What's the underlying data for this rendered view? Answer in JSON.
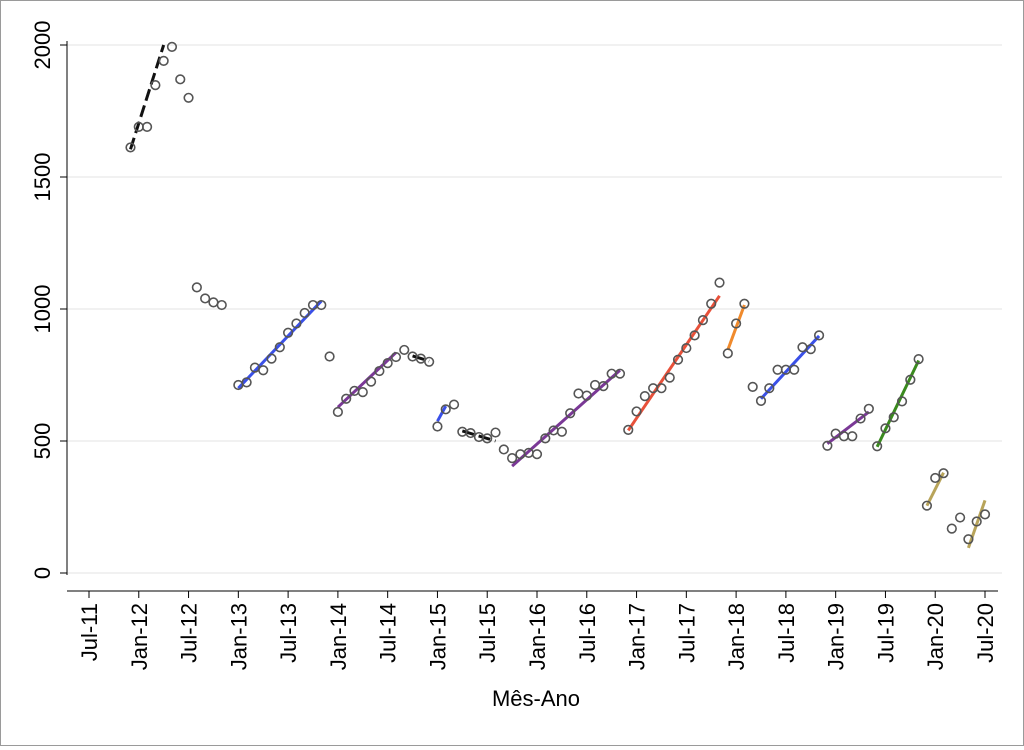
{
  "chart_data": {
    "type": "scatter",
    "title": "",
    "xlabel": "Mês-Ano",
    "ylabel": "",
    "ylim": [
      0,
      2000
    ],
    "yticks": [
      0,
      500,
      1000,
      1500,
      2000
    ],
    "xlim": [
      "2011-07",
      "2020-07"
    ],
    "xticks": [
      {
        "value": "2011-07",
        "label": "Jul-11"
      },
      {
        "value": "2012-01",
        "label": "Jan-12"
      },
      {
        "value": "2012-07",
        "label": "Jul-12"
      },
      {
        "value": "2013-01",
        "label": "Jan-13"
      },
      {
        "value": "2013-07",
        "label": "Jul-13"
      },
      {
        "value": "2014-01",
        "label": "Jan-14"
      },
      {
        "value": "2014-07",
        "label": "Jul-14"
      },
      {
        "value": "2015-01",
        "label": "Jan-15"
      },
      {
        "value": "2015-07",
        "label": "Jul-15"
      },
      {
        "value": "2016-01",
        "label": "Jan-16"
      },
      {
        "value": "2016-07",
        "label": "Jul-16"
      },
      {
        "value": "2017-01",
        "label": "Jan-17"
      },
      {
        "value": "2017-07",
        "label": "Jul-17"
      },
      {
        "value": "2018-01",
        "label": "Jan-18"
      },
      {
        "value": "2018-07",
        "label": "Jul-18"
      },
      {
        "value": "2019-01",
        "label": "Jan-19"
      },
      {
        "value": "2019-07",
        "label": "Jul-19"
      },
      {
        "value": "2020-01",
        "label": "Jan-20"
      },
      {
        "value": "2020-07",
        "label": "Jul-20"
      }
    ],
    "grid": true,
    "points": [
      {
        "x": "2011-12",
        "y": 1612
      },
      {
        "x": "2012-01",
        "y": 1690
      },
      {
        "x": "2012-02",
        "y": 1690
      },
      {
        "x": "2012-03",
        "y": 1848
      },
      {
        "x": "2012-04",
        "y": 1940
      },
      {
        "x": "2012-05",
        "y": 1993
      },
      {
        "x": "2012-06",
        "y": 1870
      },
      {
        "x": "2012-07",
        "y": 1800
      },
      {
        "x": "2012-08",
        "y": 1082
      },
      {
        "x": "2012-09",
        "y": 1040
      },
      {
        "x": "2012-10",
        "y": 1025
      },
      {
        "x": "2012-11",
        "y": 1015
      },
      {
        "x": "2013-01",
        "y": 712
      },
      {
        "x": "2013-02",
        "y": 722
      },
      {
        "x": "2013-03",
        "y": 778
      },
      {
        "x": "2013-04",
        "y": 768
      },
      {
        "x": "2013-05",
        "y": 812
      },
      {
        "x": "2013-06",
        "y": 855
      },
      {
        "x": "2013-07",
        "y": 910
      },
      {
        "x": "2013-08",
        "y": 945
      },
      {
        "x": "2013-09",
        "y": 985
      },
      {
        "x": "2013-10",
        "y": 1015
      },
      {
        "x": "2013-11",
        "y": 1015
      },
      {
        "x": "2013-12",
        "y": 820
      },
      {
        "x": "2014-01",
        "y": 610
      },
      {
        "x": "2014-02",
        "y": 660
      },
      {
        "x": "2014-03",
        "y": 690
      },
      {
        "x": "2014-04",
        "y": 685
      },
      {
        "x": "2014-05",
        "y": 725
      },
      {
        "x": "2014-06",
        "y": 765
      },
      {
        "x": "2014-07",
        "y": 795
      },
      {
        "x": "2014-08",
        "y": 818
      },
      {
        "x": "2014-09",
        "y": 845
      },
      {
        "x": "2014-10",
        "y": 820
      },
      {
        "x": "2014-11",
        "y": 812
      },
      {
        "x": "2014-12",
        "y": 800
      },
      {
        "x": "2015-01",
        "y": 555
      },
      {
        "x": "2015-02",
        "y": 620
      },
      {
        "x": "2015-03",
        "y": 638
      },
      {
        "x": "2015-04",
        "y": 535
      },
      {
        "x": "2015-05",
        "y": 530
      },
      {
        "x": "2015-06",
        "y": 515
      },
      {
        "x": "2015-07",
        "y": 510
      },
      {
        "x": "2015-08",
        "y": 532
      },
      {
        "x": "2015-09",
        "y": 468
      },
      {
        "x": "2015-10",
        "y": 435
      },
      {
        "x": "2015-11",
        "y": 450
      },
      {
        "x": "2015-12",
        "y": 455
      },
      {
        "x": "2016-01",
        "y": 450
      },
      {
        "x": "2016-02",
        "y": 510
      },
      {
        "x": "2016-03",
        "y": 540
      },
      {
        "x": "2016-04",
        "y": 535
      },
      {
        "x": "2016-05",
        "y": 605
      },
      {
        "x": "2016-06",
        "y": 680
      },
      {
        "x": "2016-07",
        "y": 672
      },
      {
        "x": "2016-08",
        "y": 712
      },
      {
        "x": "2016-09",
        "y": 708
      },
      {
        "x": "2016-10",
        "y": 755
      },
      {
        "x": "2016-11",
        "y": 755
      },
      {
        "x": "2016-12",
        "y": 542
      },
      {
        "x": "2017-01",
        "y": 612
      },
      {
        "x": "2017-02",
        "y": 670
      },
      {
        "x": "2017-03",
        "y": 700
      },
      {
        "x": "2017-04",
        "y": 700
      },
      {
        "x": "2017-05",
        "y": 740
      },
      {
        "x": "2017-06",
        "y": 808
      },
      {
        "x": "2017-07",
        "y": 852
      },
      {
        "x": "2017-08",
        "y": 900
      },
      {
        "x": "2017-09",
        "y": 958
      },
      {
        "x": "2017-10",
        "y": 1020
      },
      {
        "x": "2017-11",
        "y": 1100
      },
      {
        "x": "2017-12",
        "y": 832
      },
      {
        "x": "2018-01",
        "y": 945
      },
      {
        "x": "2018-02",
        "y": 1020
      },
      {
        "x": "2018-03",
        "y": 705
      },
      {
        "x": "2018-04",
        "y": 652
      },
      {
        "x": "2018-05",
        "y": 700
      },
      {
        "x": "2018-06",
        "y": 770
      },
      {
        "x": "2018-07",
        "y": 770
      },
      {
        "x": "2018-08",
        "y": 770
      },
      {
        "x": "2018-09",
        "y": 855
      },
      {
        "x": "2018-10",
        "y": 848
      },
      {
        "x": "2018-11",
        "y": 900
      },
      {
        "x": "2018-12",
        "y": 482
      },
      {
        "x": "2019-01",
        "y": 528
      },
      {
        "x": "2019-02",
        "y": 518
      },
      {
        "x": "2019-03",
        "y": 518
      },
      {
        "x": "2019-04",
        "y": 585
      },
      {
        "x": "2019-05",
        "y": 622
      },
      {
        "x": "2019-06",
        "y": 480
      },
      {
        "x": "2019-07",
        "y": 548
      },
      {
        "x": "2019-08",
        "y": 590
      },
      {
        "x": "2019-09",
        "y": 650
      },
      {
        "x": "2019-10",
        "y": 732
      },
      {
        "x": "2019-11",
        "y": 810
      },
      {
        "x": "2019-12",
        "y": 255
      },
      {
        "x": "2020-01",
        "y": 360
      },
      {
        "x": "2020-02",
        "y": 378
      },
      {
        "x": "2020-03",
        "y": 168
      },
      {
        "x": "2020-04",
        "y": 210
      },
      {
        "x": "2020-05",
        "y": 128
      },
      {
        "x": "2020-06",
        "y": 195
      },
      {
        "x": "2020-07",
        "y": 222
      }
    ],
    "trend_lines": [
      {
        "color": "#111111",
        "dashed": true,
        "x1": "2011-12",
        "y1": 1605,
        "x2": "2012-04",
        "y2": 2000
      },
      {
        "color": "#3a50e8",
        "dashed": false,
        "x1": "2013-01",
        "y1": 700,
        "x2": "2013-11",
        "y2": 1030
      },
      {
        "color": "#7a3896",
        "dashed": false,
        "x1": "2014-01",
        "y1": 628,
        "x2": "2014-08",
        "y2": 835
      },
      {
        "color": "#111111",
        "dashed": true,
        "x1": "2014-10",
        "y1": 822,
        "x2": "2014-12",
        "y2": 803
      },
      {
        "color": "#3a50e8",
        "dashed": false,
        "x1": "2015-01",
        "y1": 575,
        "x2": "2015-02",
        "y2": 632
      },
      {
        "color": "#111111",
        "dashed": true,
        "x1": "2015-04",
        "y1": 538,
        "x2": "2015-08",
        "y2": 500
      },
      {
        "color": "#7a3896",
        "dashed": false,
        "x1": "2015-10",
        "y1": 405,
        "x2": "2016-11",
        "y2": 768
      },
      {
        "color": "#e8513a",
        "dashed": false,
        "x1": "2016-12",
        "y1": 540,
        "x2": "2017-11",
        "y2": 1050
      },
      {
        "color": "#f08a2c",
        "dashed": false,
        "x1": "2017-12",
        "y1": 845,
        "x2": "2018-02",
        "y2": 1015
      },
      {
        "color": "#3a50e8",
        "dashed": false,
        "x1": "2018-04",
        "y1": 660,
        "x2": "2018-11",
        "y2": 898
      },
      {
        "color": "#7a3896",
        "dashed": false,
        "x1": "2018-12",
        "y1": 490,
        "x2": "2019-05",
        "y2": 610
      },
      {
        "color": "#3a8a1e",
        "dashed": false,
        "x1": "2019-06",
        "y1": 478,
        "x2": "2019-11",
        "y2": 805
      },
      {
        "color": "#b8a45a",
        "dashed": false,
        "x1": "2019-12",
        "y1": 255,
        "x2": "2020-02",
        "y2": 380
      },
      {
        "color": "#b8a45a",
        "dashed": false,
        "x1": "2020-05",
        "y1": 95,
        "x2": "2020-07",
        "y2": 275
      }
    ],
    "marker_color": "#555555"
  }
}
